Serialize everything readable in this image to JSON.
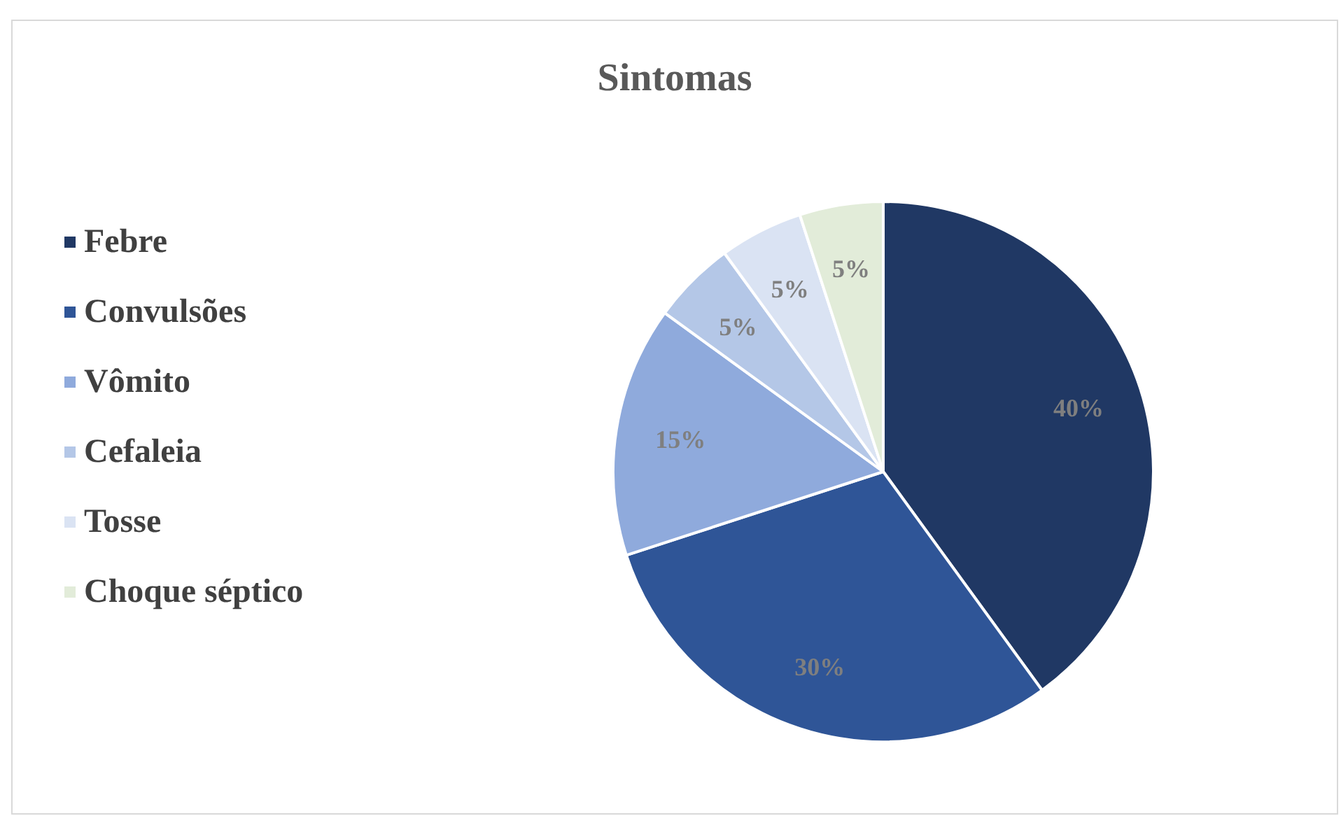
{
  "chart_data": {
    "type": "pie",
    "title": "Sintomas",
    "categories": [
      "Febre",
      "Convulsões",
      "Vômito",
      "Cefaleia",
      "Tosse",
      "Choque séptico"
    ],
    "values": [
      40,
      30,
      15,
      5,
      5,
      5
    ],
    "colors": [
      "#203864",
      "#2f5597",
      "#8faadc",
      "#b4c7e7",
      "#dae3f3",
      "#e2ecd9"
    ],
    "value_labels": [
      "40%",
      "30%",
      "15%",
      "5%",
      "5%",
      "5%"
    ],
    "legend": "left"
  }
}
